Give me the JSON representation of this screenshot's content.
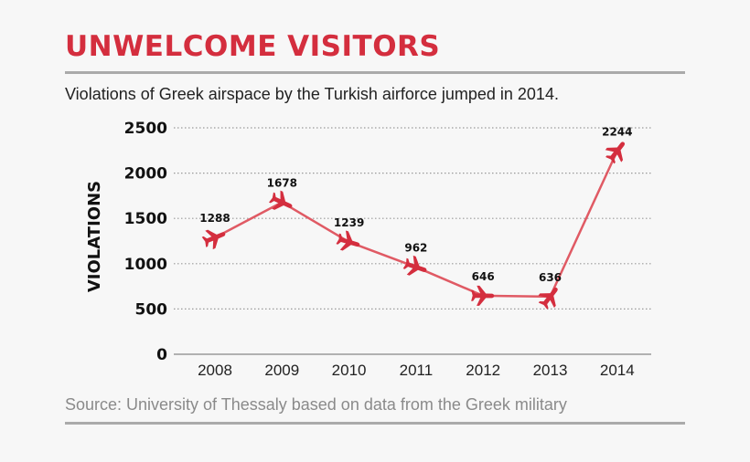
{
  "header": {
    "title": "UNWELCOME VISITORS",
    "subtitle": "Violations of Greek airspace by the Turkish airforce jumped in 2014."
  },
  "footer": {
    "source": "Source: University of Thessaly based on data from the Greek military"
  },
  "colors": {
    "accent": "#d42e3e",
    "line": "#e05a64",
    "marker": "#d42e3e",
    "grid": "#9a9a9a"
  },
  "chart_data": {
    "type": "line",
    "title": "UNWELCOME VISITORS",
    "subtitle": "Violations of Greek airspace by the Turkish airforce jumped in 2014.",
    "xlabel": "",
    "ylabel": "VIOLATIONS",
    "categories": [
      "2008",
      "2009",
      "2010",
      "2011",
      "2012",
      "2013",
      "2014"
    ],
    "series": [
      {
        "values": [
          1288,
          1678,
          1239,
          962,
          646,
          636,
          2244
        ]
      }
    ],
    "data_labels": [
      "1288",
      "1678",
      "1239",
      "962",
      "646",
      "636",
      "2244"
    ],
    "ylim": [
      0,
      2500
    ],
    "yticks": [
      0,
      500,
      1000,
      1500,
      2000,
      2500
    ],
    "ytick_labels": [
      "0",
      "500",
      "1000",
      "1500",
      "2000",
      "2500"
    ],
    "grid": true,
    "legend": "none",
    "marker_icon": "airplane-icon"
  }
}
